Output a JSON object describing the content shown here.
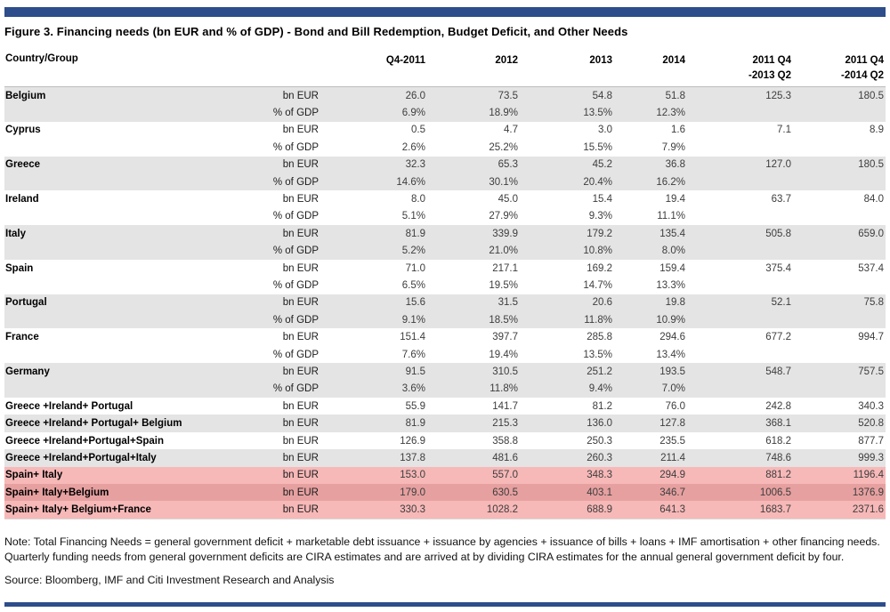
{
  "page": {
    "title": "Figure 3. Financing needs (bn EUR and % of GDP) - Bond and Bill Redemption, Budget Deficit, and Other Needs",
    "note": "Note: Total Financing Needs = general government deficit + marketable debt issuance + issuance by agencies + issuance of bills + loans + IMF amortisation + other financing needs. Quarterly funding needs from general government deficits are CIRA estimates and are arrived at by dividing CIRA estimates for the annual general government deficit by four.",
    "source": "Source: Bloomberg, IMF and Citi Investment Research and Analysis"
  },
  "colors": {
    "accent_bar": "#2d4d8b",
    "row_gray": "#e4e4e4",
    "row_pink": "#f7b8b8",
    "row_pink_dark": "#e6a0a0",
    "number_text": "#3d3d3d"
  },
  "table": {
    "headers": {
      "country": "Country/Group",
      "c1": "Q4-2011",
      "c2": "2012",
      "c3": "2013",
      "c4": "2014",
      "c5_line1": "2011 Q4",
      "c5_line2": "-2013 Q2",
      "c6_line1": "2011 Q4",
      "c6_line2": "-2014 Q2"
    },
    "units": {
      "bn": "bn EUR",
      "pct": "% of GDP"
    },
    "rows": [
      {
        "label": "Belgium",
        "shade": "gray",
        "bn": [
          "26.0",
          "73.5",
          "54.8",
          "51.8",
          "125.3",
          "180.5"
        ],
        "pct": [
          "6.9%",
          "18.9%",
          "13.5%",
          "12.3%",
          "",
          ""
        ]
      },
      {
        "label": "Cyprus",
        "shade": "white",
        "bn": [
          "0.5",
          "4.7",
          "3.0",
          "1.6",
          "7.1",
          "8.9"
        ],
        "pct": [
          "2.6%",
          "25.2%",
          "15.5%",
          "7.9%",
          "",
          ""
        ]
      },
      {
        "label": "Greece",
        "shade": "gray",
        "bn": [
          "32.3",
          "65.3",
          "45.2",
          "36.8",
          "127.0",
          "180.5"
        ],
        "pct": [
          "14.6%",
          "30.1%",
          "20.4%",
          "16.2%",
          "",
          ""
        ]
      },
      {
        "label": "Ireland",
        "shade": "white",
        "bn": [
          "8.0",
          "45.0",
          "15.4",
          "19.4",
          "63.7",
          "84.0"
        ],
        "pct": [
          "5.1%",
          "27.9%",
          "9.3%",
          "11.1%",
          "",
          ""
        ]
      },
      {
        "label": "Italy",
        "shade": "gray",
        "bn": [
          "81.9",
          "339.9",
          "179.2",
          "135.4",
          "505.8",
          "659.0"
        ],
        "pct": [
          "5.2%",
          "21.0%",
          "10.8%",
          "8.0%",
          "",
          ""
        ]
      },
      {
        "label": "Spain",
        "shade": "white",
        "bn": [
          "71.0",
          "217.1",
          "169.2",
          "159.4",
          "375.4",
          "537.4"
        ],
        "pct": [
          "6.5%",
          "19.5%",
          "14.7%",
          "13.3%",
          "",
          ""
        ]
      },
      {
        "label": "Portugal",
        "shade": "gray",
        "bn": [
          "15.6",
          "31.5",
          "20.6",
          "19.8",
          "52.1",
          "75.8"
        ],
        "pct": [
          "9.1%",
          "18.5%",
          "11.8%",
          "10.9%",
          "",
          ""
        ]
      },
      {
        "label": "France",
        "shade": "white",
        "bn": [
          "151.4",
          "397.7",
          "285.8",
          "294.6",
          "677.2",
          "994.7"
        ],
        "pct": [
          "7.6%",
          "19.4%",
          "13.5%",
          "13.4%",
          "",
          ""
        ]
      },
      {
        "label": "Germany",
        "shade": "gray",
        "bn": [
          "91.5",
          "310.5",
          "251.2",
          "193.5",
          "548.7",
          "757.5"
        ],
        "pct": [
          "3.6%",
          "11.8%",
          "9.4%",
          "7.0%",
          "",
          ""
        ]
      },
      {
        "label": "Greece +Ireland+ Portugal",
        "shade": "white",
        "bn": [
          "55.9",
          "141.7",
          "81.2",
          "76.0",
          "242.8",
          "340.3"
        ]
      },
      {
        "label": "Greece +Ireland+ Portugal+ Belgium",
        "shade": "gray",
        "bn": [
          "81.9",
          "215.3",
          "136.0",
          "127.8",
          "368.1",
          "520.8"
        ]
      },
      {
        "label": "Greece +Ireland+Portugal+Spain",
        "shade": "white",
        "bn": [
          "126.9",
          "358.8",
          "250.3",
          "235.5",
          "618.2",
          "877.7"
        ]
      },
      {
        "label": "Greece +Ireland+Portugal+Italy",
        "shade": "gray",
        "bn": [
          "137.8",
          "481.6",
          "260.3",
          "211.4",
          "748.6",
          "999.3"
        ]
      },
      {
        "label": "Spain+ Italy",
        "shade": "pink",
        "bn": [
          "153.0",
          "557.0",
          "348.3",
          "294.9",
          "881.2",
          "1196.4"
        ]
      },
      {
        "label": "Spain+ Italy+Belgium",
        "shade": "pinkdark",
        "bn": [
          "179.0",
          "630.5",
          "403.1",
          "346.7",
          "1006.5",
          "1376.9"
        ]
      },
      {
        "label": "Spain+ Italy+ Belgium+France",
        "shade": "pink",
        "bn": [
          "330.3",
          "1028.2",
          "688.9",
          "641.3",
          "1683.7",
          "2371.6"
        ]
      }
    ]
  }
}
